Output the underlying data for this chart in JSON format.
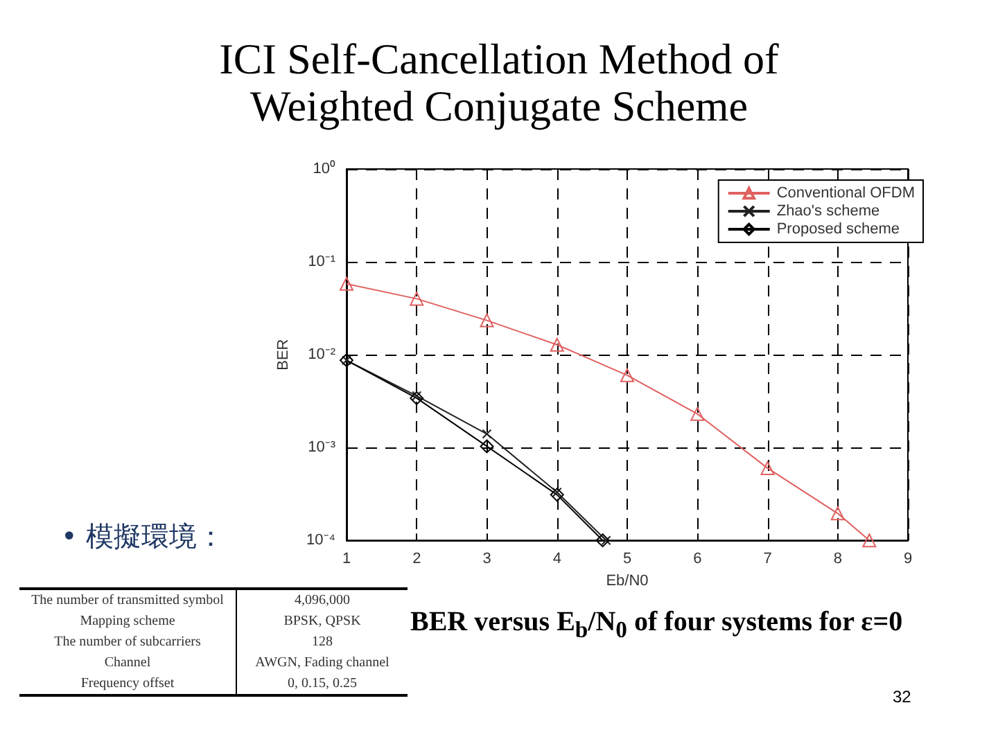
{
  "chart_data": {
    "type": "line",
    "title": "ICI Self-Cancellation Method of Weighted Conjugate Scheme",
    "xlabel": "Eb/N0",
    "ylabel": "BER",
    "log": "y",
    "grid": true,
    "legend": "top right",
    "line_style": "solid",
    "xlim": [
      1,
      9
    ],
    "xticks": [
      1,
      2,
      3,
      4,
      5,
      6,
      7,
      8,
      9
    ],
    "ylim": [
      0.0001,
      1
    ],
    "yticks": [
      {
        "value": 0.0001,
        "label": "10⁻⁴"
      },
      {
        "value": 0.001,
        "label": "10⁻³"
      },
      {
        "value": 0.01,
        "label": "10⁻²"
      },
      {
        "value": 0.1,
        "label": "10⁻¹"
      },
      {
        "value": 1,
        "label": "10⁰"
      }
    ],
    "series": [
      {
        "name": "Conventional OFDM",
        "color": "#e06060",
        "marker": "triangle",
        "x": [
          1,
          2,
          3,
          4,
          5,
          6,
          7,
          8,
          8.45
        ],
        "values": [
          0.058,
          0.04,
          0.0234,
          0.0128,
          0.006,
          0.0023,
          0.0006,
          0.000195,
          0.0001
        ]
      },
      {
        "name": "Zhao's scheme",
        "color": "#222222",
        "marker": "cross",
        "x": [
          1,
          2,
          3,
          4,
          4.7
        ],
        "values": [
          0.0087,
          0.0036,
          0.0014,
          0.00033,
          0.0001
        ]
      },
      {
        "name": "Proposed scheme",
        "color": "#000000",
        "marker": "diamond",
        "x": [
          1,
          2,
          3,
          4,
          4.65
        ],
        "values": [
          0.0087,
          0.0034,
          0.00103,
          0.00031,
          0.0001
        ]
      }
    ],
    "annotations": [
      "• 模擬環境：",
      "The number of transmitted symbol",
      "4,096,000",
      "Mapping scheme",
      "BPSK, QPSK",
      "The number of subcarriers",
      "128",
      "Channel",
      "AWGN, Fading channel",
      "Frequency offset",
      "0, 0.15, 0.25",
      "BER versus E$_{b}$/N$_{0}$ of four systems for ε=0",
      "32"
    ]
  }
}
